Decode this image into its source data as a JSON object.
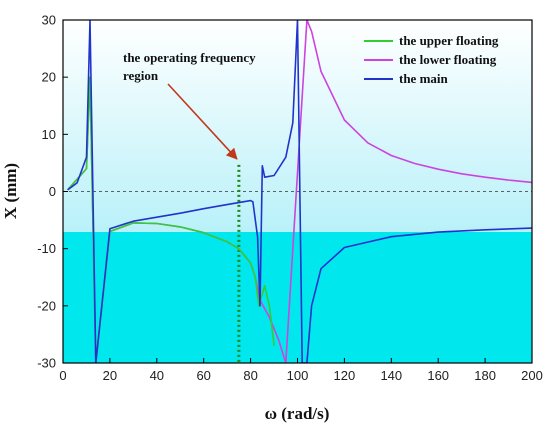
{
  "chart_data": {
    "type": "line",
    "xlabel": "ω (rad/s)",
    "ylabel": "X (mm)",
    "xlim": [
      0,
      200
    ],
    "ylim": [
      -30,
      30
    ],
    "xticks": [
      0,
      20,
      40,
      60,
      80,
      100,
      120,
      140,
      160,
      180,
      200
    ],
    "yticks": [
      -30,
      -20,
      -10,
      0,
      10,
      20,
      30
    ],
    "grid": false,
    "legend_position": "top-right",
    "background": "cyan gradient, solid cyan below y = -7",
    "annotation": {
      "text_lines": [
        "the operating frequency",
        "region"
      ],
      "points_to": {
        "x": 75,
        "y": 5
      },
      "operating_frequency_marker_x": 75,
      "arrow_color": "#c0391b",
      "marker_color": "#1f8a1f"
    },
    "reference_line": {
      "y": 0,
      "style": "dashed",
      "color": "#333333"
    },
    "series": [
      {
        "name": "the upper floating",
        "color": "#33cc33",
        "x": [
          2,
          10,
          11.5,
          14,
          20,
          30,
          40,
          50,
          60,
          70,
          75,
          80,
          82,
          83.5,
          86,
          88,
          90
        ],
        "y": [
          0.3,
          4,
          20,
          -30,
          -7,
          -5.5,
          -5.6,
          -6.2,
          -7.2,
          -8.8,
          -10,
          -12.5,
          -15,
          -20,
          -16.5,
          -20,
          -27
        ]
      },
      {
        "name": "the lower floating",
        "color": "#cc44dd",
        "x": [
          2,
          10,
          11.5,
          14,
          20,
          30,
          40,
          50,
          60,
          70,
          75,
          80,
          82,
          84,
          88,
          92,
          95,
          104,
          106,
          110,
          120,
          130,
          140,
          150,
          160,
          170,
          180,
          190,
          200
        ],
        "y": [
          0.3,
          4,
          20,
          -30,
          -7,
          -5.5,
          -5.6,
          -6.2,
          -7.2,
          -8.8,
          -10,
          -12.5,
          -15,
          -19,
          -22,
          -26,
          -30,
          30,
          28,
          21,
          12.5,
          8.5,
          6.3,
          4.9,
          3.9,
          3.1,
          2.5,
          2,
          1.6
        ]
      },
      {
        "name": "the main",
        "color": "#2233cc",
        "x": [
          2,
          6,
          10,
          11.5,
          14,
          20,
          30,
          40,
          50,
          60,
          70,
          80,
          81,
          83,
          84,
          85,
          86,
          90,
          95,
          98,
          100,
          102,
          104,
          106,
          110,
          120,
          140,
          160,
          180,
          200
        ],
        "y": [
          0.3,
          1.5,
          6,
          30,
          -30,
          -6.5,
          -5.2,
          -4.5,
          -3.8,
          -3,
          -2.3,
          -1.6,
          -1.8,
          -8,
          -20,
          4.5,
          2.5,
          2.8,
          6,
          12,
          30,
          -30,
          -30,
          -20,
          -13.5,
          -9.8,
          -7.9,
          -7.1,
          -6.7,
          -6.4
        ]
      }
    ]
  }
}
